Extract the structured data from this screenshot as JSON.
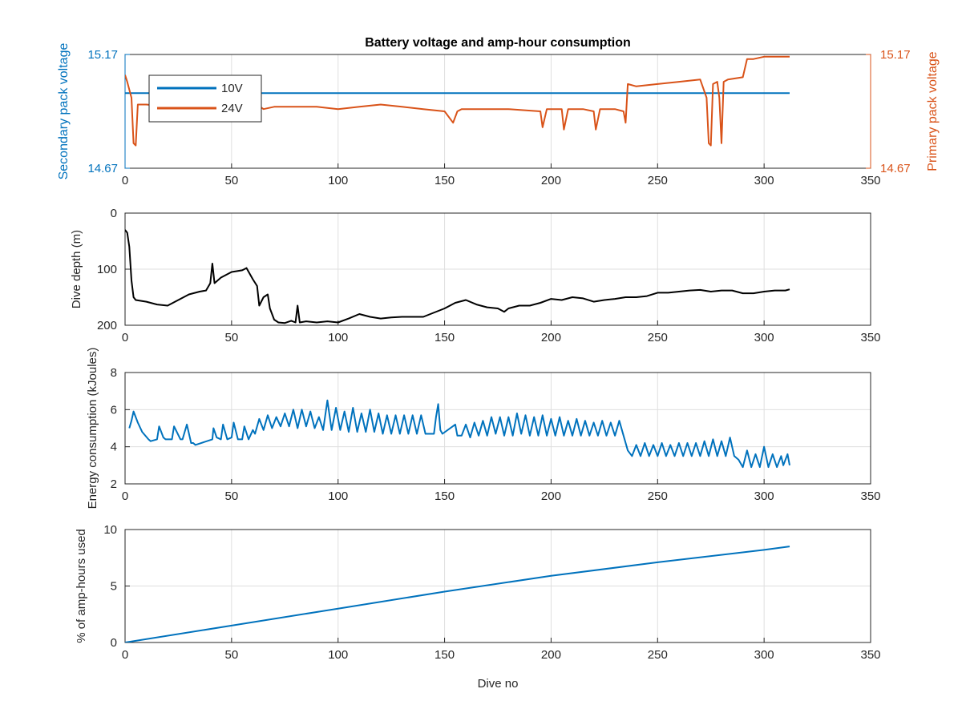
{
  "colors": {
    "blue": "#0072BD",
    "orange": "#D95319",
    "black": "#000000"
  },
  "chart_data": [
    {
      "type": "line",
      "title": "Battery voltage and amp-hour consumption",
      "xlim": [
        0,
        350
      ],
      "ylim": [
        14.67,
        15.17
      ],
      "xticks": [
        "0",
        "50",
        "100",
        "150",
        "200",
        "250",
        "300",
        "350"
      ],
      "yticks_left": [
        "14.67",
        "15.17"
      ],
      "yticks_right": [
        "14.67",
        "15.17"
      ],
      "ylabel_left": "Secondary pack voltage",
      "ylabel_right": "Primary pack voltage",
      "legend": {
        "position": "top-left",
        "entries": [
          "10V",
          "24V"
        ]
      },
      "grid": true,
      "series": [
        {
          "name": "10V",
          "color": "#0072BD",
          "axis": "left",
          "x": [
            0,
            312
          ],
          "y": [
            15.0,
            15.0
          ]
        },
        {
          "name": "24V",
          "color": "#D95319",
          "axis": "right",
          "x": [
            0,
            1,
            3,
            4,
            5,
            6,
            7,
            10,
            20,
            30,
            40,
            42,
            45,
            55,
            62,
            65,
            70,
            80,
            90,
            100,
            110,
            120,
            130,
            140,
            150,
            154,
            156,
            158,
            165,
            180,
            195,
            196,
            198,
            200,
            205,
            206,
            208,
            215,
            220,
            221,
            223,
            230,
            234,
            235,
            236,
            240,
            250,
            260,
            270,
            273,
            274,
            275,
            276,
            278,
            279,
            280,
            281,
            283,
            290,
            292,
            295,
            300,
            305,
            312
          ],
          "y": [
            15.08,
            15.05,
            14.98,
            14.78,
            14.77,
            14.95,
            14.95,
            14.95,
            14.94,
            14.95,
            14.94,
            14.94,
            14.95,
            14.95,
            14.95,
            14.93,
            14.94,
            14.94,
            14.94,
            14.93,
            14.94,
            14.95,
            14.94,
            14.93,
            14.92,
            14.87,
            14.92,
            14.93,
            14.93,
            14.93,
            14.92,
            14.85,
            14.93,
            14.93,
            14.93,
            14.84,
            14.93,
            14.93,
            14.92,
            14.84,
            14.93,
            14.93,
            14.92,
            14.87,
            15.04,
            15.03,
            15.04,
            15.05,
            15.06,
            14.98,
            14.78,
            14.77,
            15.04,
            15.05,
            14.98,
            14.78,
            15.05,
            15.06,
            15.07,
            15.15,
            15.15,
            15.16,
            15.16,
            15.16
          ]
        }
      ]
    },
    {
      "type": "line",
      "xlim": [
        0,
        350
      ],
      "ylim": [
        0,
        200
      ],
      "yreversed": true,
      "xticks": [
        "0",
        "50",
        "100",
        "150",
        "200",
        "250",
        "300",
        "350"
      ],
      "yticks": [
        "0",
        "100",
        "200"
      ],
      "ylabel": "Dive depth (m)",
      "grid": true,
      "series": [
        {
          "color": "#000000",
          "x": [
            0,
            1,
            2,
            3,
            4,
            5,
            10,
            15,
            20,
            25,
            30,
            35,
            38,
            40,
            41,
            42,
            45,
            50,
            55,
            57,
            60,
            62,
            63,
            65,
            67,
            68,
            70,
            72,
            75,
            78,
            80,
            81,
            82,
            85,
            90,
            95,
            100,
            105,
            110,
            115,
            120,
            125,
            130,
            140,
            150,
            155,
            160,
            165,
            170,
            175,
            178,
            180,
            185,
            190,
            195,
            200,
            205,
            210,
            215,
            220,
            225,
            230,
            235,
            240,
            245,
            250,
            255,
            260,
            265,
            270,
            275,
            280,
            285,
            290,
            295,
            300,
            305,
            310,
            312
          ],
          "y": [
            30,
            35,
            60,
            120,
            150,
            155,
            158,
            163,
            165,
            155,
            145,
            140,
            138,
            125,
            90,
            125,
            115,
            105,
            102,
            98,
            118,
            130,
            165,
            150,
            145,
            170,
            190,
            195,
            196,
            192,
            195,
            165,
            195,
            193,
            195,
            193,
            195,
            188,
            180,
            185,
            188,
            186,
            185,
            185,
            170,
            160,
            155,
            163,
            168,
            170,
            176,
            170,
            165,
            165,
            160,
            153,
            155,
            150,
            152,
            158,
            155,
            153,
            150,
            150,
            148,
            142,
            142,
            140,
            138,
            137,
            140,
            138,
            138,
            143,
            143,
            140,
            138,
            138,
            136
          ]
        }
      ]
    },
    {
      "type": "line",
      "xlim": [
        0,
        350
      ],
      "ylim": [
        2,
        8
      ],
      "xticks": [
        "0",
        "50",
        "100",
        "150",
        "200",
        "250",
        "300",
        "350"
      ],
      "yticks": [
        "2",
        "4",
        "6",
        "8"
      ],
      "ylabel": "Energy consumption (kJoules)",
      "grid": true,
      "series": [
        {
          "color": "#0072BD",
          "x": [
            2,
            3,
            4,
            6,
            8,
            11,
            12,
            15,
            16,
            18,
            19,
            22,
            23,
            26,
            27,
            29,
            31,
            32,
            33,
            41,
            41.5,
            43,
            45,
            46,
            48,
            50,
            51,
            53,
            55,
            56,
            58,
            60,
            61,
            63,
            65,
            67,
            69,
            71,
            73,
            75,
            77,
            79,
            81,
            83,
            85,
            87,
            89,
            91,
            93,
            95,
            97,
            99,
            101,
            103,
            105,
            107,
            109,
            111,
            113,
            115,
            117,
            119,
            121,
            123,
            125,
            127,
            129,
            131,
            133,
            135,
            137,
            139,
            141,
            145,
            146,
            147,
            148,
            149,
            155,
            156,
            158,
            160,
            162,
            164,
            166,
            168,
            170,
            172,
            174,
            176,
            178,
            180,
            182,
            184,
            186,
            188,
            190,
            192,
            194,
            196,
            198,
            200,
            202,
            204,
            206,
            208,
            210,
            212,
            214,
            216,
            218,
            220,
            222,
            224,
            226,
            228,
            230,
            232,
            234,
            236,
            238,
            240,
            242,
            244,
            246,
            248,
            250,
            252,
            254,
            256,
            258,
            260,
            262,
            264,
            266,
            268,
            270,
            272,
            274,
            276,
            278,
            280,
            282,
            284,
            286,
            288,
            290,
            292,
            294,
            296,
            298,
            300,
            302,
            304,
            306,
            308,
            309,
            311,
            312
          ],
          "y": [
            5.0,
            5.4,
            5.9,
            5.3,
            4.8,
            4.4,
            4.3,
            4.4,
            5.1,
            4.5,
            4.4,
            4.4,
            5.1,
            4.4,
            4.4,
            5.2,
            4.2,
            4.2,
            4.1,
            4.4,
            5.0,
            4.5,
            4.4,
            5.2,
            4.4,
            4.5,
            5.3,
            4.4,
            4.4,
            5.1,
            4.4,
            4.9,
            4.7,
            5.5,
            4.9,
            5.7,
            5.0,
            5.6,
            5.1,
            5.8,
            5.1,
            6.0,
            5.0,
            6.0,
            5.1,
            5.9,
            5.0,
            5.6,
            4.9,
            6.5,
            4.9,
            6.1,
            4.9,
            5.9,
            4.8,
            6.1,
            4.8,
            5.8,
            4.8,
            6.0,
            4.8,
            5.8,
            4.7,
            5.7,
            4.7,
            5.7,
            4.7,
            5.7,
            4.7,
            5.7,
            4.7,
            5.7,
            4.7,
            4.7,
            5.6,
            6.3,
            4.9,
            4.7,
            5.2,
            4.6,
            4.6,
            5.2,
            4.5,
            5.3,
            4.6,
            5.4,
            4.6,
            5.6,
            4.7,
            5.6,
            4.6,
            5.6,
            4.6,
            5.8,
            4.7,
            5.7,
            4.6,
            5.6,
            4.6,
            5.7,
            4.6,
            5.5,
            4.6,
            5.6,
            4.6,
            5.4,
            4.6,
            5.5,
            4.6,
            5.4,
            4.6,
            5.3,
            4.6,
            5.4,
            4.6,
            5.3,
            4.6,
            5.4,
            4.6,
            3.8,
            3.5,
            4.1,
            3.5,
            4.2,
            3.5,
            4.1,
            3.5,
            4.2,
            3.5,
            4.1,
            3.5,
            4.2,
            3.5,
            4.2,
            3.5,
            4.2,
            3.5,
            4.3,
            3.5,
            4.4,
            3.5,
            4.3,
            3.5,
            4.5,
            3.5,
            3.3,
            2.9,
            3.8,
            2.9,
            3.6,
            2.9,
            4.0,
            2.9,
            3.6,
            2.9,
            3.5,
            3.0,
            3.6,
            3.0
          ]
        }
      ]
    },
    {
      "type": "line",
      "xlim": [
        0,
        350
      ],
      "ylim": [
        0,
        10
      ],
      "xticks": [
        "0",
        "50",
        "100",
        "150",
        "200",
        "250",
        "300",
        "350"
      ],
      "yticks": [
        "0",
        "5",
        "10"
      ],
      "ylabel": "% of amp-hours used",
      "xlabel": "Dive no",
      "grid": true,
      "series": [
        {
          "color": "#0072BD",
          "x": [
            0,
            50,
            100,
            150,
            200,
            250,
            300,
            312
          ],
          "y": [
            0.0,
            1.5,
            3.0,
            4.5,
            5.9,
            7.1,
            8.2,
            8.5
          ]
        }
      ]
    }
  ]
}
